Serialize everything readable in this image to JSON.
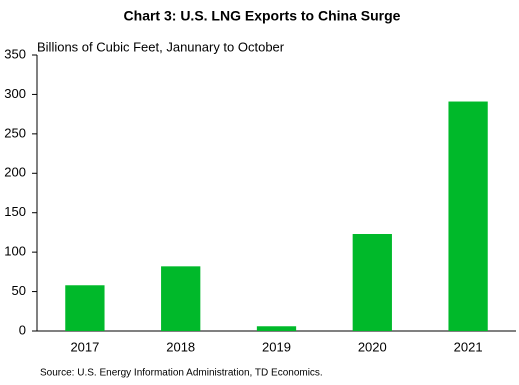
{
  "chart_data": {
    "type": "bar",
    "title": "Chart 3: U.S. LNG Exports to China Surge",
    "subtitle": "Billions of Cubic Feet, Janunary to October",
    "source": "Source: U.S. Energy Information Administration, TD Economics.",
    "categories": [
      "2017",
      "2018",
      "2019",
      "2020",
      "2021"
    ],
    "values": [
      58,
      82,
      6,
      123,
      291
    ],
    "color": "#00b92a",
    "ylim": [
      0,
      350
    ],
    "yticks": [
      0,
      50,
      100,
      150,
      200,
      250,
      300,
      350
    ],
    "grid": false
  }
}
